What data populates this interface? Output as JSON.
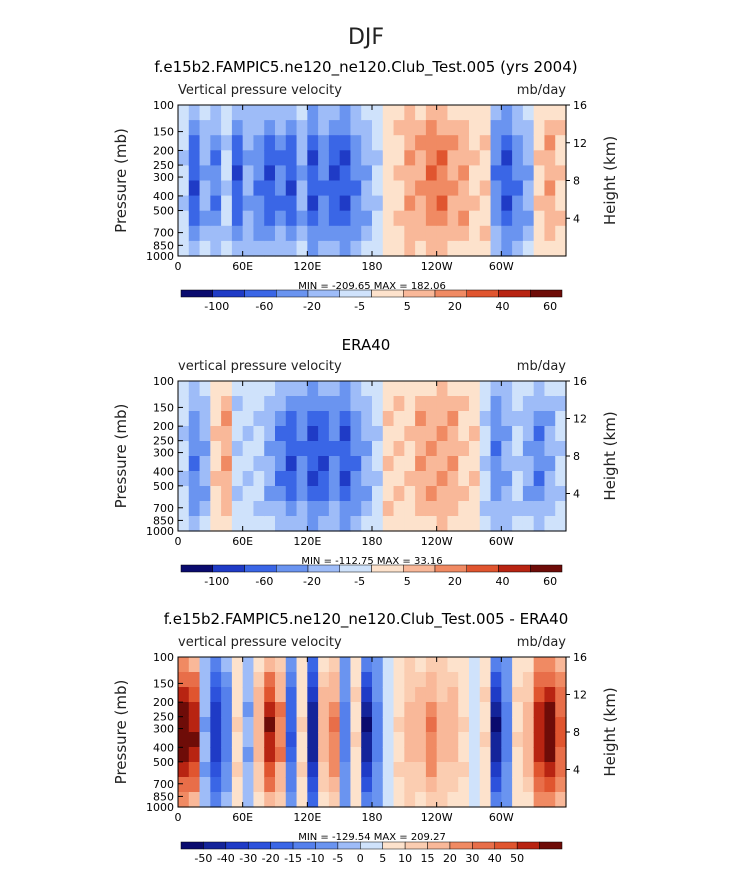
{
  "figure": {
    "season": "DJF"
  },
  "chart_data": [
    {
      "type": "heatmap",
      "title": "f.e15b2.FAMPIC5.ne120_ne120.Club_Test.005 (yrs 2004)",
      "left_string": "Vertical pressure velocity",
      "units": "mb/day",
      "ylabel": "Pressure (mb)",
      "ylabel_right": "Height (km)",
      "x_ticks": [
        "0",
        "60E",
        "120E",
        "180",
        "120W",
        "60W"
      ],
      "y_ticks": [
        "100",
        "150",
        "200",
        "250",
        "300",
        "400",
        "500",
        "700",
        "850",
        "1000"
      ],
      "height_ticks": [
        "16",
        "12",
        "8",
        "4"
      ],
      "stats": "MIN = -209.65   MAX = 182.06",
      "colorbar_labels": [
        "-100",
        "-60",
        "-20",
        "-5",
        "5",
        "20",
        "40",
        "60"
      ],
      "colors": [
        "#0a0b6e",
        "#1f3bc6",
        "#3a66e6",
        "#6a94f0",
        "#9ebcf8",
        "#cfe2fb",
        "#fde2cc",
        "#f9b899",
        "#f08a63",
        "#e0552f",
        "#b82412",
        "#6e0c08"
      ],
      "profile": [
        {
          "x": 0,
          "v": -1
        },
        {
          "x": 10,
          "v": -4
        },
        {
          "x": 20,
          "v": -2
        },
        {
          "x": 30,
          "v": -3
        },
        {
          "x": 40,
          "v": -1
        },
        {
          "x": 50,
          "v": -4
        },
        {
          "x": 60,
          "v": -2
        },
        {
          "x": 70,
          "v": -3
        },
        {
          "x": 80,
          "v": -4
        },
        {
          "x": 90,
          "v": -3
        },
        {
          "x": 100,
          "v": -4
        },
        {
          "x": 110,
          "v": -2
        },
        {
          "x": 120,
          "v": -4
        },
        {
          "x": 130,
          "v": -3
        },
        {
          "x": 140,
          "v": -4
        },
        {
          "x": 150,
          "v": -4
        },
        {
          "x": 160,
          "v": -3
        },
        {
          "x": 170,
          "v": -2
        },
        {
          "x": 180,
          "v": -1
        },
        {
          "x": 190,
          "v": 0
        },
        {
          "x": 200,
          "v": 1
        },
        {
          "x": 210,
          "v": 2
        },
        {
          "x": 220,
          "v": 2
        },
        {
          "x": 230,
          "v": 3
        },
        {
          "x": 240,
          "v": 3
        },
        {
          "x": 250,
          "v": 2
        },
        {
          "x": 260,
          "v": 2
        },
        {
          "x": 270,
          "v": 1
        },
        {
          "x": 280,
          "v": 1
        },
        {
          "x": 290,
          "v": -3
        },
        {
          "x": 300,
          "v": -4
        },
        {
          "x": 310,
          "v": -3
        },
        {
          "x": 320,
          "v": -2
        },
        {
          "x": 330,
          "v": 1
        },
        {
          "x": 340,
          "v": 2
        },
        {
          "x": 350,
          "v": 1
        }
      ]
    },
    {
      "type": "heatmap",
      "title": "ERA40",
      "left_string": "vertical pressure velocity",
      "units": "mb/day",
      "ylabel": "Pressure (mb)",
      "ylabel_right": "Height (km)",
      "x_ticks": [
        "0",
        "60E",
        "120E",
        "180",
        "120W",
        "60W"
      ],
      "y_ticks": [
        "100",
        "150",
        "200",
        "250",
        "300",
        "400",
        "500",
        "700",
        "850",
        "1000"
      ],
      "height_ticks": [
        "16",
        "12",
        "8",
        "4"
      ],
      "stats": "MIN = -112.75   MAX = 33.16",
      "colorbar_labels": [
        "-100",
        "-60",
        "-20",
        "-5",
        "5",
        "20",
        "40",
        "60"
      ],
      "colors": [
        "#0a0b6e",
        "#1f3bc6",
        "#3a66e6",
        "#6a94f0",
        "#9ebcf8",
        "#cfe2fb",
        "#fde2cc",
        "#f9b899",
        "#f08a63",
        "#e0552f",
        "#b82412",
        "#6e0c08"
      ],
      "profile": [
        {
          "x": 0,
          "v": -1
        },
        {
          "x": 10,
          "v": -3
        },
        {
          "x": 20,
          "v": -2
        },
        {
          "x": 30,
          "v": 1
        },
        {
          "x": 40,
          "v": 2
        },
        {
          "x": 50,
          "v": -1
        },
        {
          "x": 60,
          "v": -1
        },
        {
          "x": 70,
          "v": -1
        },
        {
          "x": 80,
          "v": -2
        },
        {
          "x": 90,
          "v": -3
        },
        {
          "x": 100,
          "v": -4
        },
        {
          "x": 110,
          "v": -3
        },
        {
          "x": 120,
          "v": -4
        },
        {
          "x": 130,
          "v": -4
        },
        {
          "x": 140,
          "v": -3
        },
        {
          "x": 150,
          "v": -4
        },
        {
          "x": 160,
          "v": -3
        },
        {
          "x": 170,
          "v": -2
        },
        {
          "x": 180,
          "v": -1
        },
        {
          "x": 190,
          "v": 1
        },
        {
          "x": 200,
          "v": 1
        },
        {
          "x": 210,
          "v": 1
        },
        {
          "x": 220,
          "v": 2
        },
        {
          "x": 230,
          "v": 2
        },
        {
          "x": 240,
          "v": 2
        },
        {
          "x": 250,
          "v": 2
        },
        {
          "x": 260,
          "v": 1
        },
        {
          "x": 270,
          "v": 1
        },
        {
          "x": 280,
          "v": -1
        },
        {
          "x": 290,
          "v": -3
        },
        {
          "x": 300,
          "v": -2
        },
        {
          "x": 310,
          "v": -1
        },
        {
          "x": 320,
          "v": -2
        },
        {
          "x": 330,
          "v": -3
        },
        {
          "x": 340,
          "v": -2
        },
        {
          "x": 350,
          "v": -1
        }
      ]
    },
    {
      "type": "heatmap",
      "title": "f.e15b2.FAMPIC5.ne120_ne120.Club_Test.005 - ERA40",
      "left_string": "vertical pressure velocity",
      "units": "mb/day",
      "ylabel": "Pressure (mb)",
      "ylabel_right": "Height (km)",
      "x_ticks": [
        "0",
        "60E",
        "120E",
        "180",
        "120W",
        "60W"
      ],
      "y_ticks": [
        "100",
        "150",
        "200",
        "250",
        "300",
        "400",
        "500",
        "700",
        "850",
        "1000"
      ],
      "height_ticks": [
        "16",
        "12",
        "8",
        "4"
      ],
      "stats": "MIN = -129.54   MAX = 209.27",
      "colorbar_labels": [
        "-50",
        "-40",
        "-30",
        "-20",
        "-15",
        "-10",
        "-5",
        "0",
        "5",
        "10",
        "15",
        "20",
        "30",
        "40",
        "50"
      ],
      "colors": [
        "#0a0b6e",
        "#14249a",
        "#1f3bc6",
        "#2d52dc",
        "#3a66e6",
        "#5580ec",
        "#6a94f0",
        "#9ebcf8",
        "#cfe2fb",
        "#fde2cc",
        "#fbcdb1",
        "#f9b899",
        "#f08a63",
        "#e86e49",
        "#e0552f",
        "#b82412",
        "#6e0c08"
      ],
      "profile": [
        {
          "x": 0,
          "v": 6
        },
        {
          "x": 10,
          "v": 5
        },
        {
          "x": 20,
          "v": -1
        },
        {
          "x": 30,
          "v": -4
        },
        {
          "x": 40,
          "v": -2
        },
        {
          "x": 50,
          "v": 1
        },
        {
          "x": 60,
          "v": -1
        },
        {
          "x": 70,
          "v": 2
        },
        {
          "x": 80,
          "v": 5
        },
        {
          "x": 90,
          "v": 3
        },
        {
          "x": 100,
          "v": -3
        },
        {
          "x": 110,
          "v": 1
        },
        {
          "x": 120,
          "v": -5
        },
        {
          "x": 130,
          "v": 2
        },
        {
          "x": 140,
          "v": 3
        },
        {
          "x": 150,
          "v": -2
        },
        {
          "x": 160,
          "v": 1
        },
        {
          "x": 170,
          "v": -5
        },
        {
          "x": 180,
          "v": -2
        },
        {
          "x": 190,
          "v": 0
        },
        {
          "x": 200,
          "v": 1
        },
        {
          "x": 210,
          "v": 2
        },
        {
          "x": 220,
          "v": 2
        },
        {
          "x": 230,
          "v": 3
        },
        {
          "x": 240,
          "v": 2
        },
        {
          "x": 250,
          "v": 2
        },
        {
          "x": 260,
          "v": 1
        },
        {
          "x": 270,
          "v": 0
        },
        {
          "x": 280,
          "v": 1
        },
        {
          "x": 290,
          "v": -5
        },
        {
          "x": 300,
          "v": -2
        },
        {
          "x": 310,
          "v": 1
        },
        {
          "x": 320,
          "v": 2
        },
        {
          "x": 330,
          "v": 5
        },
        {
          "x": 340,
          "v": 6
        },
        {
          "x": 350,
          "v": 4
        }
      ]
    }
  ]
}
